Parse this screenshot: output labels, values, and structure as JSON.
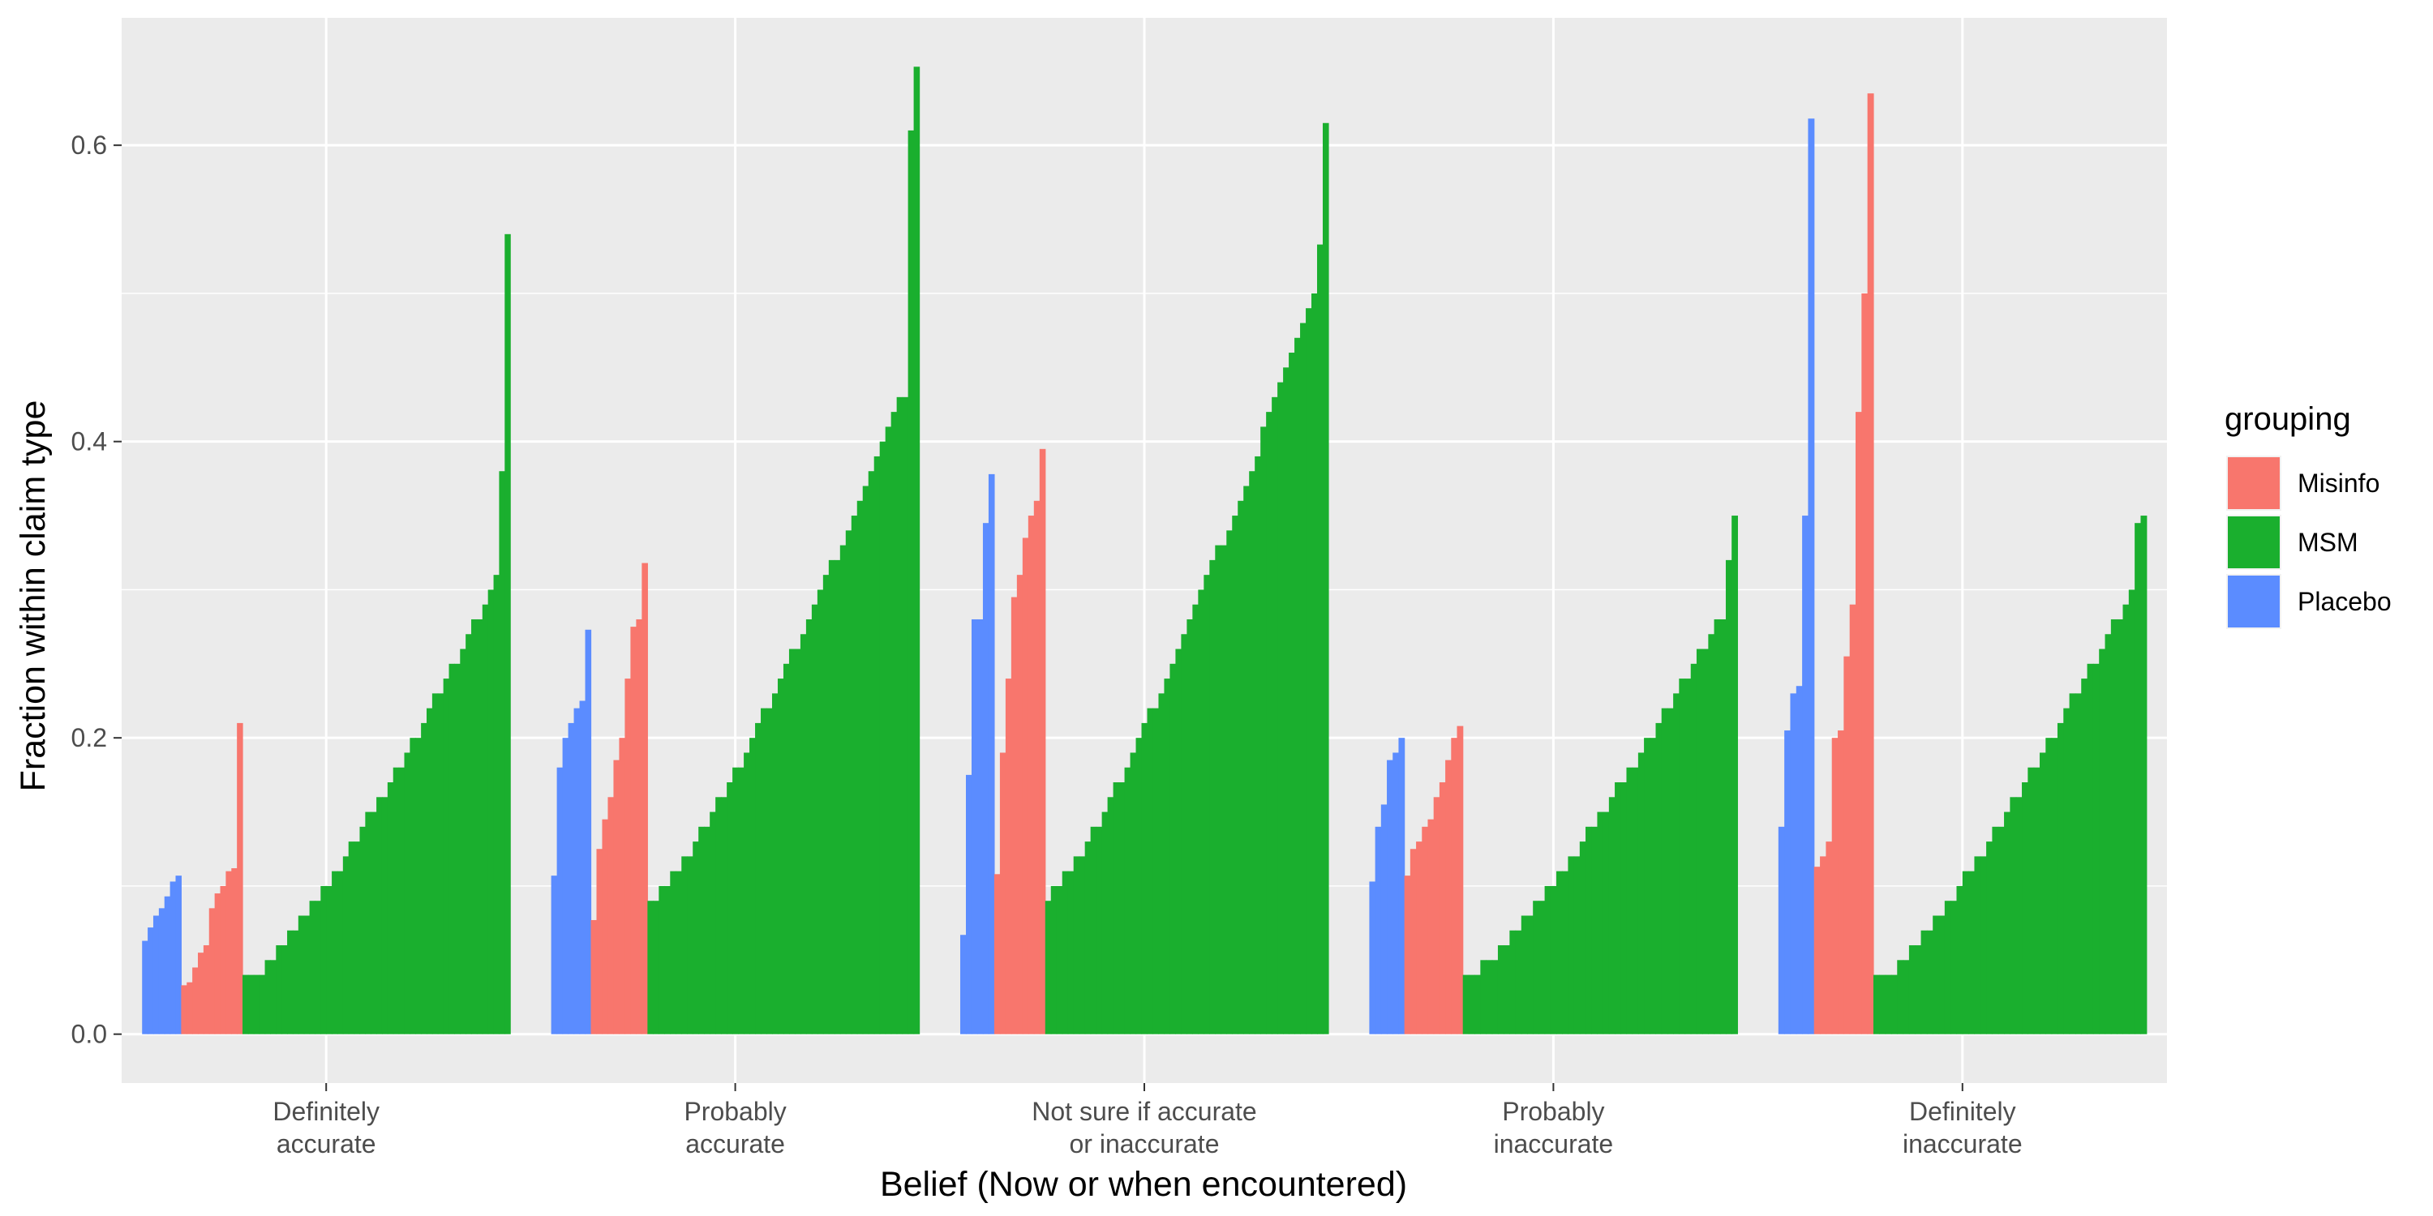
{
  "chart_data": {
    "type": "bar",
    "xlabel": "Belief (Now or when encountered)",
    "ylabel": "Fraction within claim type",
    "ylim": [
      -0.033,
      0.686
    ],
    "yticks": [
      0.0,
      0.2,
      0.4,
      0.6
    ],
    "ytick_labels": [
      "0.0",
      "0.2",
      "0.4",
      "0.6"
    ],
    "grid": true,
    "categories": [
      [
        "Definitely",
        "accurate"
      ],
      [
        "Probably",
        "accurate"
      ],
      [
        "Not sure if accurate",
        "or inaccurate"
      ],
      [
        "Probably",
        "inaccurate"
      ],
      [
        "Definitely",
        "inaccurate"
      ]
    ],
    "legend": {
      "title": "grouping",
      "position": "right",
      "entries": [
        {
          "label": "Misinfo",
          "color": "#F8766D"
        },
        {
          "label": "MSM",
          "color": "#1AAF2E"
        },
        {
          "label": "Placebo",
          "color": "#5B8CFF"
        }
      ]
    },
    "series": [
      {
        "name": "Placebo",
        "color": "#5B8CFF",
        "values": [
          [
            0.063,
            0.072,
            0.08,
            0.085,
            0.093,
            0.103,
            0.107
          ],
          [
            0.107,
            0.18,
            0.2,
            0.21,
            0.22,
            0.225,
            0.273
          ],
          [
            0.067,
            0.175,
            0.28,
            0.28,
            0.345,
            0.378
          ],
          [
            0.103,
            0.14,
            0.155,
            0.185,
            0.19,
            0.2
          ],
          [
            0.14,
            0.205,
            0.23,
            0.235,
            0.35,
            0.618
          ]
        ]
      },
      {
        "name": "Misinfo",
        "color": "#F8766D",
        "values": [
          [
            0.033,
            0.035,
            0.045,
            0.055,
            0.06,
            0.085,
            0.095,
            0.1,
            0.11,
            0.112,
            0.21
          ],
          [
            0.077,
            0.125,
            0.145,
            0.16,
            0.185,
            0.2,
            0.24,
            0.275,
            0.28,
            0.318
          ],
          [
            0.108,
            0.19,
            0.24,
            0.295,
            0.31,
            0.335,
            0.35,
            0.36,
            0.395
          ],
          [
            0.107,
            0.125,
            0.13,
            0.14,
            0.145,
            0.16,
            0.17,
            0.185,
            0.2,
            0.208
          ],
          [
            0.113,
            0.12,
            0.13,
            0.2,
            0.205,
            0.255,
            0.29,
            0.42,
            0.5,
            0.635
          ]
        ]
      },
      {
        "name": "MSM",
        "color": "#1AAF2E",
        "ranges": [
          {
            "n": 48,
            "start": 0.035,
            "end": 0.305,
            "max": 0.54,
            "second": 0.38
          },
          {
            "n": 48,
            "start": 0.09,
            "end": 0.435,
            "max": 0.653,
            "second": 0.61
          },
          {
            "n": 50,
            "start": 0.093,
            "end": 0.5,
            "max": 0.615,
            "second": 0.533
          },
          {
            "n": 47,
            "start": 0.037,
            "end": 0.285,
            "max": 0.35,
            "second": 0.32
          },
          {
            "n": 46,
            "start": 0.035,
            "end": 0.3,
            "max": 0.35,
            "second": 0.345
          }
        ]
      }
    ]
  }
}
